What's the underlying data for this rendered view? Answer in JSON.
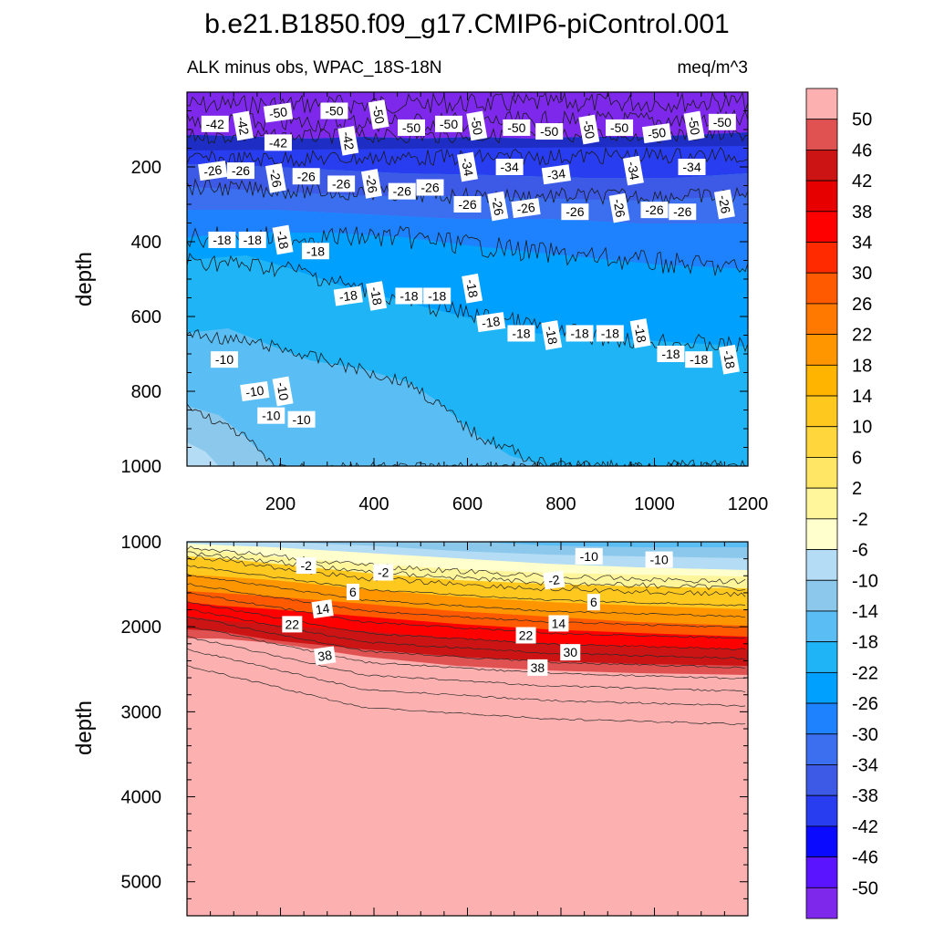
{
  "chart_data": {
    "type": "contour",
    "title": "b.e21.B1850.f09_g17.CMIP6-piControl.001",
    "subtitle_left": "ALK minus obs, WPAC_18S-18N",
    "subtitle_right": "meq/m^3",
    "ylabel": "depth",
    "xlim": [
      0,
      1200
    ],
    "x_ticks": [
      200,
      400,
      600,
      800,
      1000,
      1200
    ],
    "x_tick_labels": [
      "200",
      "400",
      "600",
      "800",
      "1000",
      "1200"
    ],
    "panels": [
      {
        "name": "upper",
        "ylim": [
          0,
          1000
        ],
        "y_ticks": [
          200,
          400,
          600,
          800,
          1000
        ],
        "y_tick_labels": [
          "200",
          "400",
          "600",
          "800",
          "1000"
        ],
        "contour_labels": [
          {
            "text": "-42",
            "x": 60,
            "y": 85
          },
          {
            "text": "-42",
            "x": 120,
            "y": 90
          },
          {
            "text": "-50",
            "x": 195,
            "y": 55
          },
          {
            "text": "-50",
            "x": 315,
            "y": 50
          },
          {
            "text": "-50",
            "x": 410,
            "y": 60
          },
          {
            "text": "-50",
            "x": 480,
            "y": 95
          },
          {
            "text": "-50",
            "x": 560,
            "y": 85
          },
          {
            "text": "-50",
            "x": 620,
            "y": 90
          },
          {
            "text": "-50",
            "x": 705,
            "y": 95
          },
          {
            "text": "-50",
            "x": 775,
            "y": 105
          },
          {
            "text": "-50",
            "x": 860,
            "y": 100
          },
          {
            "text": "-50",
            "x": 925,
            "y": 95
          },
          {
            "text": "-50",
            "x": 1005,
            "y": 110
          },
          {
            "text": "-50",
            "x": 1085,
            "y": 90
          },
          {
            "text": "-50",
            "x": 1145,
            "y": 80
          },
          {
            "text": "-42",
            "x": 195,
            "y": 135
          },
          {
            "text": "-42",
            "x": 345,
            "y": 130
          },
          {
            "text": "-26",
            "x": 55,
            "y": 210
          },
          {
            "text": "-26",
            "x": 115,
            "y": 210
          },
          {
            "text": "-26",
            "x": 190,
            "y": 230
          },
          {
            "text": "-26",
            "x": 255,
            "y": 225
          },
          {
            "text": "-26",
            "x": 330,
            "y": 245
          },
          {
            "text": "-26",
            "x": 395,
            "y": 245
          },
          {
            "text": "-26",
            "x": 460,
            "y": 265
          },
          {
            "text": "-26",
            "x": 520,
            "y": 255
          },
          {
            "text": "-34",
            "x": 600,
            "y": 200
          },
          {
            "text": "-34",
            "x": 690,
            "y": 200
          },
          {
            "text": "-34",
            "x": 790,
            "y": 220
          },
          {
            "text": "-34",
            "x": 955,
            "y": 210
          },
          {
            "text": "-34",
            "x": 1080,
            "y": 200
          },
          {
            "text": "-26",
            "x": 600,
            "y": 300
          },
          {
            "text": "-26",
            "x": 665,
            "y": 305
          },
          {
            "text": "-26",
            "x": 725,
            "y": 310
          },
          {
            "text": "-26",
            "x": 830,
            "y": 320
          },
          {
            "text": "-26",
            "x": 925,
            "y": 310
          },
          {
            "text": "-26",
            "x": 1000,
            "y": 315
          },
          {
            "text": "-26",
            "x": 1060,
            "y": 320
          },
          {
            "text": "-26",
            "x": 1150,
            "y": 300
          },
          {
            "text": "-18",
            "x": 75,
            "y": 395
          },
          {
            "text": "-18",
            "x": 140,
            "y": 395
          },
          {
            "text": "-18",
            "x": 205,
            "y": 395
          },
          {
            "text": "-18",
            "x": 275,
            "y": 425
          },
          {
            "text": "-18",
            "x": 345,
            "y": 545
          },
          {
            "text": "-18",
            "x": 405,
            "y": 545
          },
          {
            "text": "-18",
            "x": 475,
            "y": 545
          },
          {
            "text": "-18",
            "x": 535,
            "y": 545
          },
          {
            "text": "-18",
            "x": 610,
            "y": 525
          },
          {
            "text": "-18",
            "x": 650,
            "y": 615
          },
          {
            "text": "-18",
            "x": 715,
            "y": 645
          },
          {
            "text": "-18",
            "x": 780,
            "y": 650
          },
          {
            "text": "-18",
            "x": 840,
            "y": 645
          },
          {
            "text": "-18",
            "x": 905,
            "y": 645
          },
          {
            "text": "-18",
            "x": 970,
            "y": 645
          },
          {
            "text": "-18",
            "x": 1035,
            "y": 700
          },
          {
            "text": "-18",
            "x": 1095,
            "y": 715
          },
          {
            "text": "-18",
            "x": 1160,
            "y": 715
          },
          {
            "text": "-10",
            "x": 80,
            "y": 715
          },
          {
            "text": "-10",
            "x": 145,
            "y": 800
          },
          {
            "text": "-10",
            "x": 205,
            "y": 800
          },
          {
            "text": "-10",
            "x": 180,
            "y": 865
          },
          {
            "text": "-10",
            "x": 245,
            "y": 875
          }
        ]
      },
      {
        "name": "lower",
        "ylim": [
          1000,
          5400
        ],
        "y_ticks": [
          1000,
          2000,
          3000,
          4000,
          5000
        ],
        "y_tick_labels": [
          "1000",
          "2000",
          "3000",
          "4000",
          "5000"
        ],
        "contour_labels": [
          {
            "text": "-2",
            "x": 255,
            "y": 1280
          },
          {
            "text": "-2",
            "x": 420,
            "y": 1360
          },
          {
            "text": "-2",
            "x": 785,
            "y": 1450
          },
          {
            "text": "-10",
            "x": 860,
            "y": 1170
          },
          {
            "text": "-10",
            "x": 1010,
            "y": 1210
          },
          {
            "text": "6",
            "x": 355,
            "y": 1590
          },
          {
            "text": "6",
            "x": 870,
            "y": 1710
          },
          {
            "text": "14",
            "x": 290,
            "y": 1790
          },
          {
            "text": "14",
            "x": 795,
            "y": 1960
          },
          {
            "text": "22",
            "x": 225,
            "y": 1970
          },
          {
            "text": "22",
            "x": 725,
            "y": 2100
          },
          {
            "text": "30",
            "x": 820,
            "y": 2300
          },
          {
            "text": "38",
            "x": 295,
            "y": 2340
          },
          {
            "text": "38",
            "x": 750,
            "y": 2480
          }
        ]
      }
    ],
    "colorbar": {
      "levels": [
        -50,
        -46,
        -42,
        -38,
        -34,
        -30,
        -26,
        -22,
        -18,
        -14,
        -10,
        -6,
        -2,
        2,
        6,
        10,
        14,
        18,
        22,
        26,
        30,
        34,
        38,
        42,
        46,
        50
      ],
      "labels": [
        "50",
        "46",
        "42",
        "38",
        "34",
        "30",
        "26",
        "22",
        "18",
        "14",
        "10",
        "6",
        "2",
        "-2",
        "-6",
        "-10",
        "-14",
        "-18",
        "-22",
        "-26",
        "-30",
        "-34",
        "-38",
        "-42",
        "-46",
        "-50"
      ],
      "colors_top_to_bottom": [
        "#fdb0b0",
        "#e05252",
        "#cd1414",
        "#e60000",
        "#ff0000",
        "#ff2a00",
        "#ff5a00",
        "#ff7800",
        "#ff9600",
        "#ffb400",
        "#ffc81e",
        "#ffd73c",
        "#ffe664",
        "#fff59b",
        "#ffffcd",
        "#b4dcf5",
        "#8cc8eb",
        "#5abef5",
        "#1eb4f5",
        "#00a0ff",
        "#1e82ff",
        "#3c6ef0",
        "#3c5ae6",
        "#283cf0",
        "#0a0aff",
        "#5a14ff",
        "#7d28eb"
      ]
    }
  }
}
